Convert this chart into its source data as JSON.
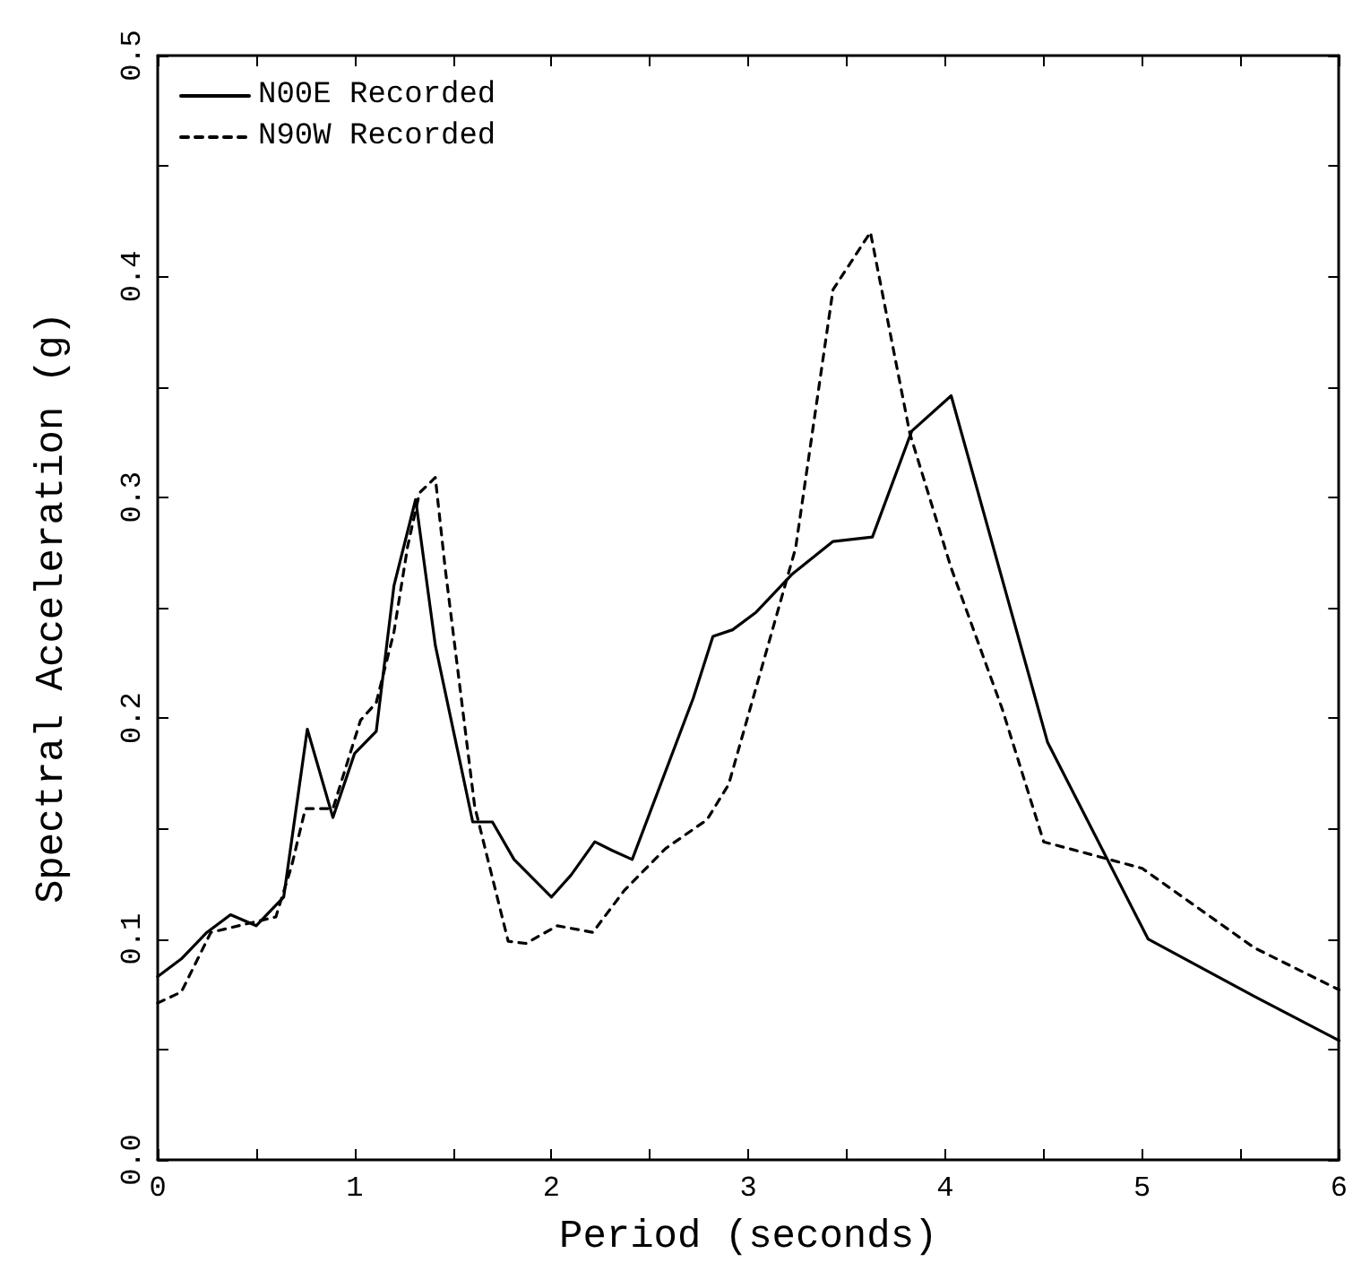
{
  "chart_data": {
    "type": "line",
    "xlabel": "Period (seconds)",
    "ylabel": "Spectral Acceleration (g)",
    "xlim": [
      0,
      6
    ],
    "xticks": [
      0,
      1,
      2,
      3,
      4,
      5,
      6
    ],
    "ylim": [
      0,
      0.5
    ],
    "yticks": [
      {
        "value": 0,
        "label": "0.0"
      },
      {
        "value": 0.1,
        "label": "0.1"
      },
      {
        "value": 0.2,
        "label": "0.2"
      },
      {
        "value": 0.3,
        "label": "0.3"
      },
      {
        "value": 0.4,
        "label": "0.4"
      },
      {
        "value": 0.5,
        "label": "0.5"
      }
    ],
    "grid": false,
    "legend": "top left",
    "marker": "none",
    "series": [
      {
        "name": "N00E Recorded",
        "color": "#000000",
        "line_style": "solid",
        "x": [
          0,
          0.12,
          0.25,
          0.37,
          0.5,
          0.64,
          0.76,
          0.89,
          1.0,
          1.11,
          1.2,
          1.31,
          1.41,
          1.6,
          1.7,
          1.81,
          2.0,
          2.1,
          2.22,
          2.31,
          2.41,
          2.72,
          2.82,
          2.92,
          3.04,
          3.22,
          3.43,
          3.63,
          3.83,
          4.03,
          4.52,
          5.03,
          5.57,
          6.0
        ],
        "values": [
          0.083,
          0.091,
          0.103,
          0.111,
          0.106,
          0.119,
          0.195,
          0.155,
          0.184,
          0.194,
          0.26,
          0.299,
          0.233,
          0.153,
          0.153,
          0.136,
          0.119,
          0.129,
          0.144,
          0.14,
          0.136,
          0.209,
          0.237,
          0.24,
          0.248,
          0.265,
          0.28,
          0.282,
          0.33,
          0.346,
          0.189,
          0.1,
          0.074,
          0.054
        ]
      },
      {
        "name": "N90W Recorded",
        "color": "#000000",
        "line_style": "dashed",
        "x": [
          0,
          0.12,
          0.27,
          0.6,
          0.68,
          0.75,
          0.89,
          1.03,
          1.11,
          1.2,
          1.27,
          1.33,
          1.41,
          1.46,
          1.61,
          1.78,
          1.87,
          2.03,
          2.21,
          2.37,
          2.58,
          2.79,
          2.9,
          3.24,
          3.43,
          3.62,
          3.82,
          4.03,
          4.29,
          4.5,
          5.0,
          5.57,
          6.0
        ],
        "values": [
          0.071,
          0.076,
          0.103,
          0.11,
          0.133,
          0.159,
          0.159,
          0.199,
          0.207,
          0.239,
          0.278,
          0.302,
          0.309,
          0.268,
          0.16,
          0.099,
          0.098,
          0.106,
          0.103,
          0.122,
          0.141,
          0.154,
          0.17,
          0.277,
          0.394,
          0.42,
          0.329,
          0.268,
          0.204,
          0.144,
          0.132,
          0.096,
          0.077
        ]
      }
    ]
  }
}
